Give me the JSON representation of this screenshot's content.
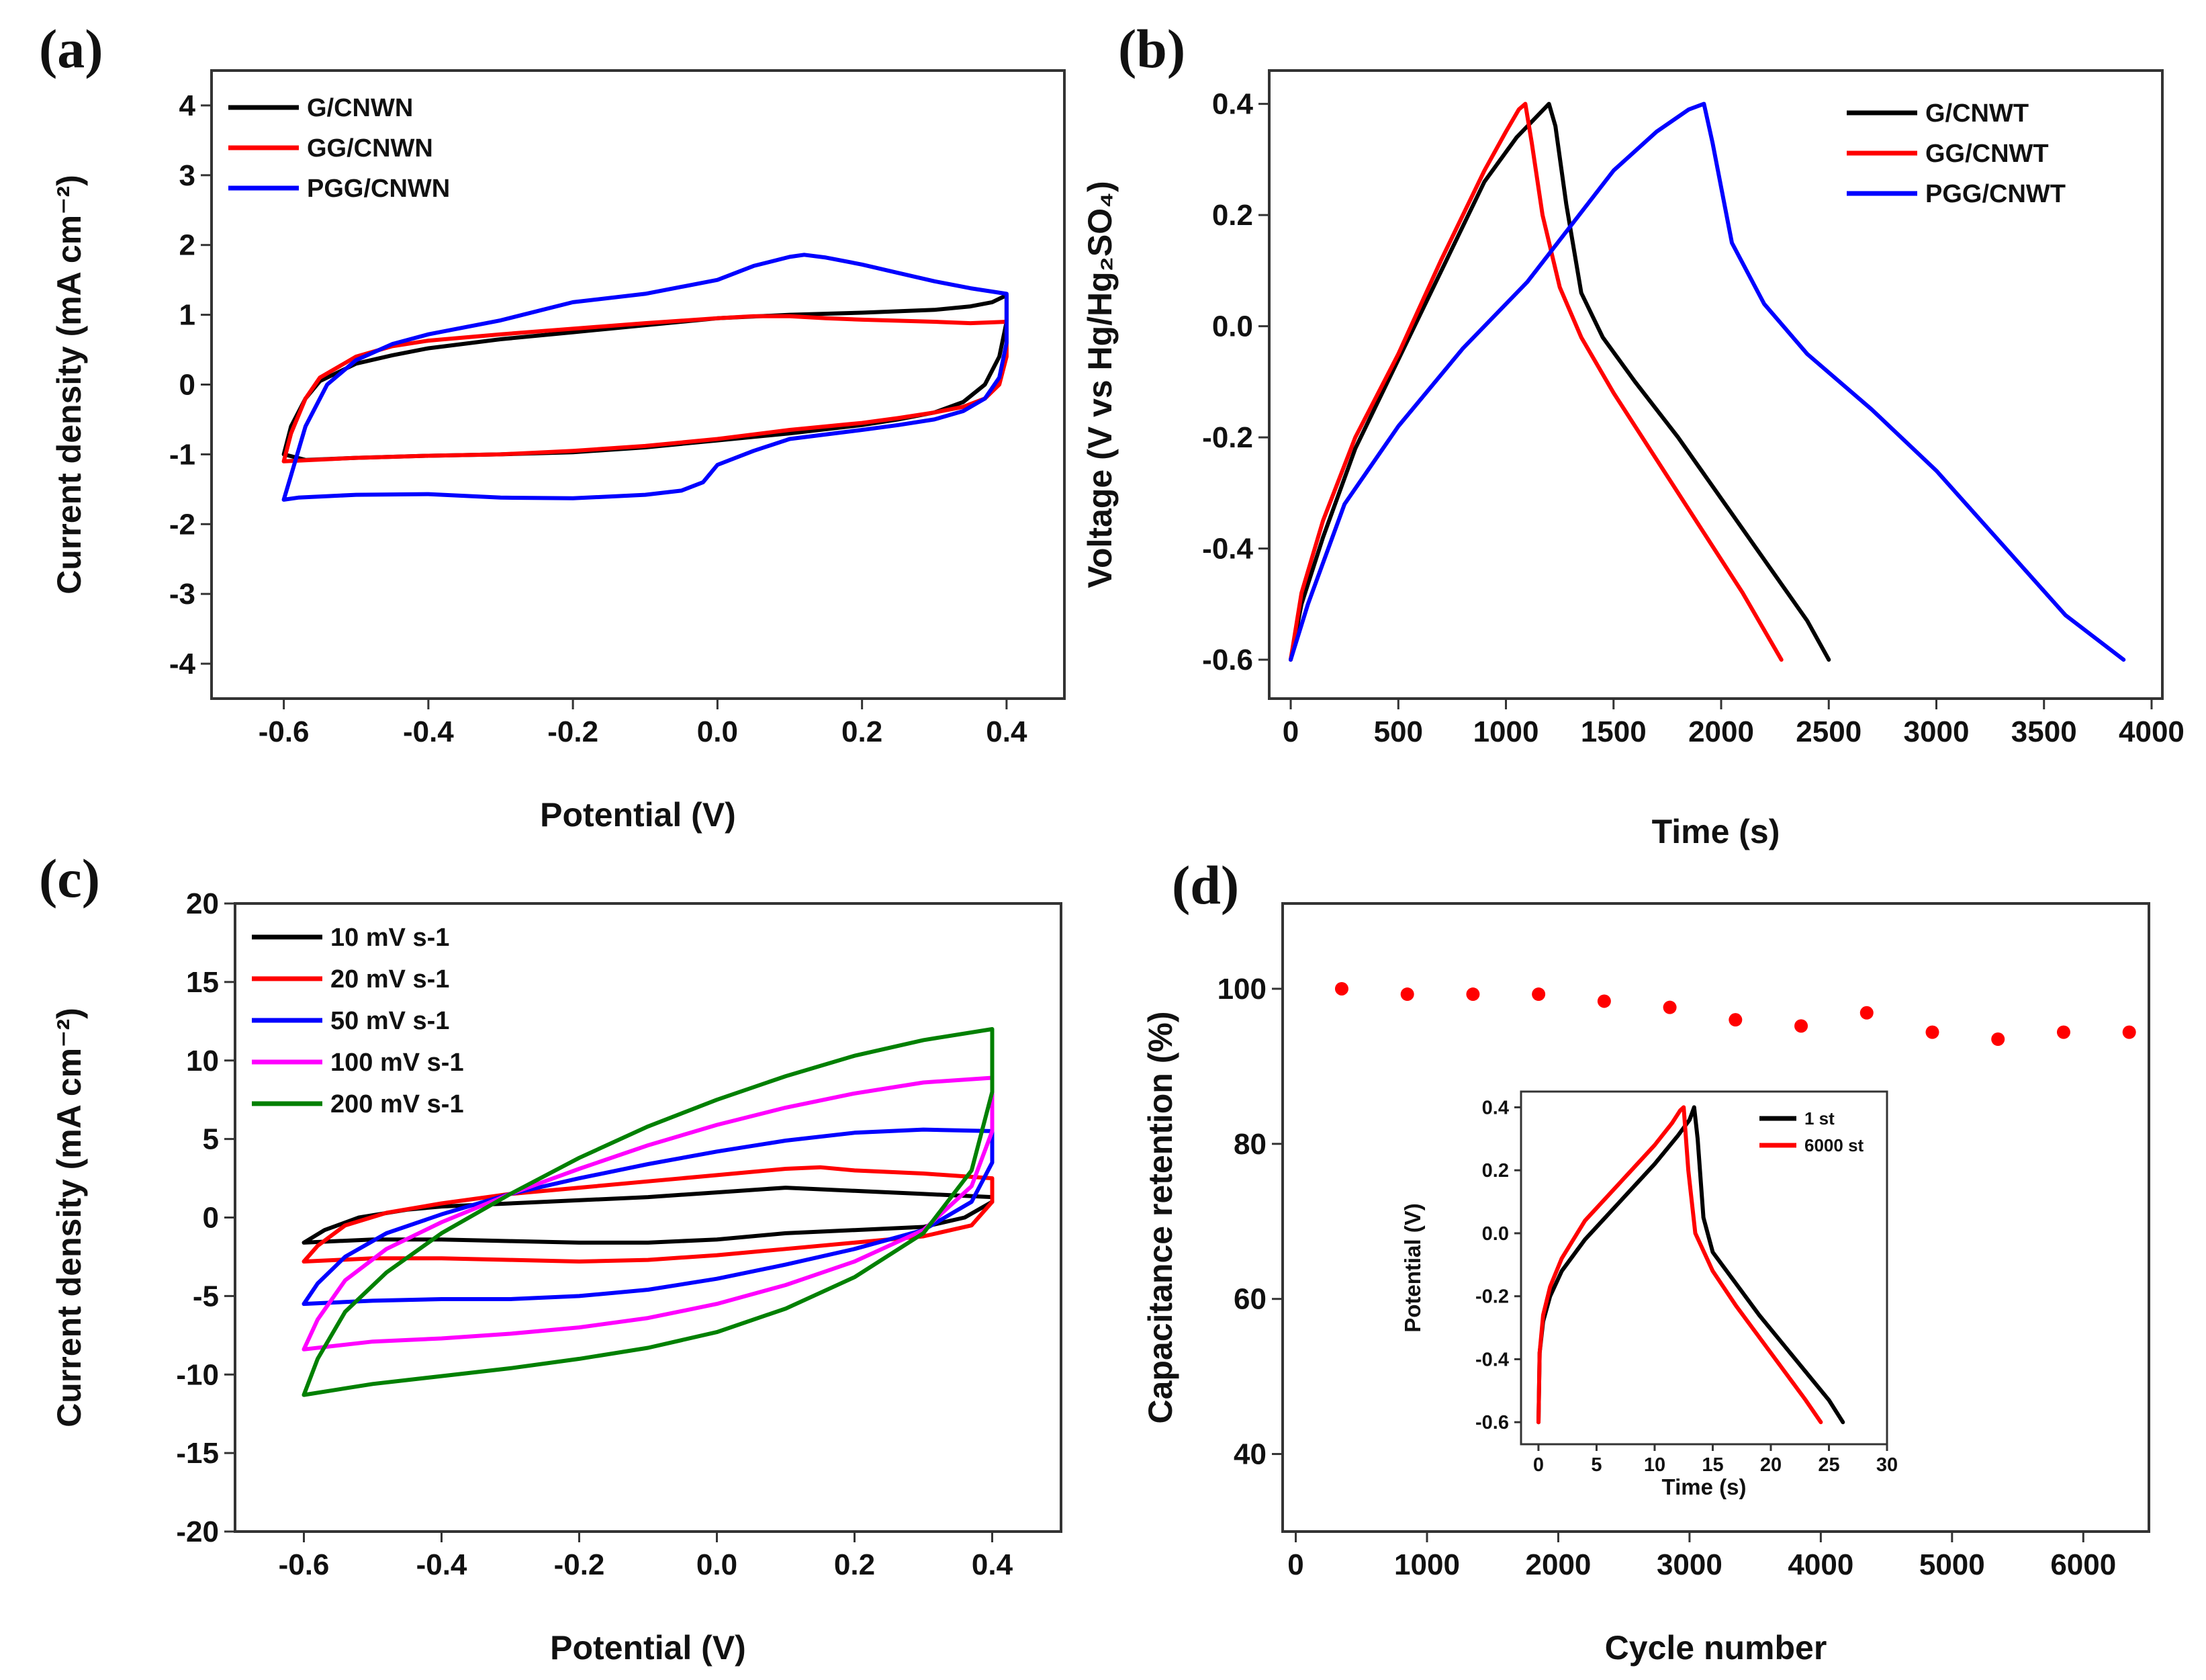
{
  "figure": {
    "panels": [
      "(a)",
      "(b)",
      "(c)",
      "(d)"
    ]
  },
  "chart_data": [
    {
      "id": "a",
      "panel": "(a)",
      "type": "line",
      "subtype": "cyclic voltammetry",
      "xlabel": "Potential (V)",
      "ylabel": "Current density (mA cm⁻²)",
      "xlim": [
        -0.7,
        0.48
      ],
      "ylim": [
        -4.5,
        4.5
      ],
      "xticks": [
        -0.6,
        -0.4,
        -0.2,
        0.0,
        0.2,
        0.4
      ],
      "xtick_labels": [
        "-0.6",
        "-0.4",
        "-0.2",
        "0.0",
        "0.2",
        "0.4"
      ],
      "yticks": [
        -4,
        -3,
        -2,
        -1,
        0,
        1,
        2,
        3,
        4
      ],
      "ytick_labels": [
        "-4",
        "-3",
        "-2",
        "-1",
        "0",
        "1",
        "2",
        "3",
        "4"
      ],
      "legend_position": "top-left",
      "series": [
        {
          "name": "G/CNWN",
          "color": "#000000",
          "x": [
            -0.6,
            -0.59,
            -0.57,
            -0.55,
            -0.5,
            -0.45,
            -0.4,
            -0.3,
            -0.2,
            -0.1,
            0.0,
            0.1,
            0.2,
            0.3,
            0.35,
            0.38,
            0.4,
            0.4,
            0.39,
            0.37,
            0.34,
            0.3,
            0.25,
            0.2,
            0.1,
            0.0,
            -0.1,
            -0.2,
            -0.3,
            -0.4,
            -0.5,
            -0.57,
            -0.6
          ],
          "y": [
            -1.0,
            -0.6,
            -0.2,
            0.05,
            0.3,
            0.42,
            0.52,
            0.65,
            0.75,
            0.85,
            0.95,
            1.0,
            1.03,
            1.07,
            1.12,
            1.18,
            1.28,
            0.9,
            0.4,
            0.0,
            -0.25,
            -0.4,
            -0.5,
            -0.58,
            -0.7,
            -0.8,
            -0.9,
            -0.97,
            -1.0,
            -1.02,
            -1.05,
            -1.08,
            -1.0
          ]
        },
        {
          "name": "GG/CNWN",
          "color": "#ff0000",
          "x": [
            -0.6,
            -0.59,
            -0.57,
            -0.55,
            -0.5,
            -0.45,
            -0.4,
            -0.3,
            -0.2,
            -0.1,
            0.0,
            0.05,
            0.1,
            0.15,
            0.2,
            0.3,
            0.35,
            0.4,
            0.4,
            0.39,
            0.37,
            0.34,
            0.3,
            0.25,
            0.2,
            0.1,
            0.0,
            -0.1,
            -0.2,
            -0.3,
            -0.4,
            -0.5,
            -0.6
          ],
          "y": [
            -1.1,
            -0.7,
            -0.2,
            0.1,
            0.4,
            0.55,
            0.63,
            0.72,
            0.8,
            0.88,
            0.95,
            0.98,
            0.98,
            0.95,
            0.93,
            0.9,
            0.88,
            0.9,
            0.4,
            0.0,
            -0.2,
            -0.32,
            -0.4,
            -0.48,
            -0.55,
            -0.65,
            -0.78,
            -0.88,
            -0.95,
            -1.0,
            -1.02,
            -1.05,
            -1.1
          ]
        },
        {
          "name": "PGG/CNWN",
          "color": "#0000ff",
          "x": [
            -0.6,
            -0.59,
            -0.57,
            -0.54,
            -0.5,
            -0.45,
            -0.4,
            -0.3,
            -0.2,
            -0.1,
            0.0,
            0.05,
            0.1,
            0.12,
            0.15,
            0.2,
            0.25,
            0.3,
            0.35,
            0.4,
            0.4,
            0.39,
            0.37,
            0.34,
            0.3,
            0.25,
            0.2,
            0.1,
            0.05,
            0.0,
            -0.02,
            -0.05,
            -0.1,
            -0.2,
            -0.3,
            -0.4,
            -0.5,
            -0.58,
            -0.6
          ],
          "y": [
            -1.65,
            -1.3,
            -0.6,
            0.0,
            0.35,
            0.58,
            0.72,
            0.92,
            1.18,
            1.3,
            1.5,
            1.7,
            1.83,
            1.86,
            1.82,
            1.72,
            1.6,
            1.48,
            1.38,
            1.3,
            0.6,
            0.1,
            -0.2,
            -0.38,
            -0.5,
            -0.58,
            -0.65,
            -0.78,
            -0.95,
            -1.15,
            -1.4,
            -1.52,
            -1.58,
            -1.63,
            -1.62,
            -1.57,
            -1.58,
            -1.62,
            -1.65
          ]
        }
      ]
    },
    {
      "id": "b",
      "panel": "(b)",
      "type": "line",
      "subtype": "galvanostatic charge-discharge",
      "xlabel": "Time (s)",
      "ylabel": "Voltage (V vs Hg/Hg₂SO₄)",
      "xlim": [
        -100,
        4050
      ],
      "ylim": [
        -0.67,
        0.46
      ],
      "xticks": [
        0,
        500,
        1000,
        1500,
        2000,
        2500,
        3000,
        3500,
        4000
      ],
      "xtick_labels": [
        "0",
        "500",
        "1000",
        "1500",
        "2000",
        "2500",
        "3000",
        "3500",
        "4000"
      ],
      "yticks": [
        -0.6,
        -0.4,
        -0.2,
        0.0,
        0.2,
        0.4
      ],
      "ytick_labels": [
        "-0.6",
        "-0.4",
        "-0.2",
        "0.0",
        "0.2",
        "0.4"
      ],
      "legend_position": "top-right",
      "series": [
        {
          "name": "G/CNWT",
          "color": "#000000",
          "x": [
            0,
            50,
            150,
            300,
            500,
            700,
            900,
            1050,
            1150,
            1200,
            1230,
            1280,
            1350,
            1450,
            1600,
            1800,
            2000,
            2200,
            2400,
            2500
          ],
          "y": [
            -0.6,
            -0.5,
            -0.38,
            -0.22,
            -0.06,
            0.1,
            0.26,
            0.34,
            0.38,
            0.4,
            0.36,
            0.22,
            0.06,
            -0.02,
            -0.1,
            -0.2,
            -0.31,
            -0.42,
            -0.53,
            -0.6
          ]
        },
        {
          "name": "GG/CNWT",
          "color": "#ff0000",
          "x": [
            0,
            50,
            150,
            300,
            500,
            700,
            900,
            1000,
            1060,
            1090,
            1120,
            1170,
            1250,
            1350,
            1500,
            1700,
            1900,
            2100,
            2280
          ],
          "y": [
            -0.6,
            -0.48,
            -0.35,
            -0.2,
            -0.05,
            0.12,
            0.28,
            0.35,
            0.39,
            0.4,
            0.33,
            0.2,
            0.07,
            -0.02,
            -0.12,
            -0.24,
            -0.36,
            -0.48,
            -0.6
          ]
        },
        {
          "name": "PGG/CNWT",
          "color": "#0000ff",
          "x": [
            0,
            80,
            250,
            500,
            800,
            1100,
            1300,
            1500,
            1700,
            1850,
            1920,
            1960,
            2050,
            2200,
            2400,
            2700,
            3000,
            3300,
            3600,
            3870
          ],
          "y": [
            -0.6,
            -0.5,
            -0.32,
            -0.18,
            -0.04,
            0.08,
            0.18,
            0.28,
            0.35,
            0.39,
            0.4,
            0.33,
            0.15,
            0.04,
            -0.05,
            -0.15,
            -0.26,
            -0.39,
            -0.52,
            -0.6
          ]
        }
      ]
    },
    {
      "id": "c",
      "panel": "(c)",
      "type": "line",
      "subtype": "cyclic voltammetry at different scan rates",
      "xlabel": "Potential (V)",
      "ylabel": "Current density (mA cm⁻²)",
      "xlim": [
        -0.7,
        0.5
      ],
      "ylim": [
        -20,
        20
      ],
      "xticks": [
        -0.6,
        -0.4,
        -0.2,
        0.0,
        0.2,
        0.4
      ],
      "xtick_labels": [
        "-0.6",
        "-0.4",
        "-0.2",
        "0.0",
        "0.2",
        "0.4"
      ],
      "yticks": [
        -20,
        -15,
        -10,
        -5,
        0,
        5,
        10,
        15,
        20
      ],
      "ytick_labels": [
        "-20",
        "-15",
        "-10",
        "-5",
        "0",
        "5",
        "10",
        "15",
        "20"
      ],
      "legend_position": "top-left",
      "series": [
        {
          "name": "10 mV s-1",
          "color": "#000000",
          "x": [
            -0.6,
            -0.57,
            -0.52,
            -0.45,
            -0.4,
            -0.3,
            -0.2,
            -0.1,
            0.0,
            0.1,
            0.2,
            0.3,
            0.4,
            0.4,
            0.36,
            0.3,
            0.2,
            0.1,
            0.0,
            -0.1,
            -0.2,
            -0.3,
            -0.4,
            -0.5,
            -0.6
          ],
          "y": [
            -1.6,
            -0.8,
            0.0,
            0.5,
            0.7,
            0.9,
            1.1,
            1.3,
            1.6,
            1.9,
            1.7,
            1.5,
            1.3,
            1.0,
            0.0,
            -0.6,
            -0.8,
            -1.0,
            -1.4,
            -1.6,
            -1.6,
            -1.5,
            -1.4,
            -1.4,
            -1.6
          ]
        },
        {
          "name": "20 mV s-1",
          "color": "#ff0000",
          "x": [
            -0.6,
            -0.58,
            -0.54,
            -0.48,
            -0.4,
            -0.3,
            -0.2,
            -0.1,
            0.0,
            0.1,
            0.15,
            0.2,
            0.3,
            0.4,
            0.4,
            0.37,
            0.3,
            0.2,
            0.1,
            0.0,
            -0.1,
            -0.2,
            -0.3,
            -0.4,
            -0.5,
            -0.6
          ],
          "y": [
            -2.8,
            -1.8,
            -0.5,
            0.3,
            0.9,
            1.5,
            1.9,
            2.3,
            2.7,
            3.1,
            3.2,
            3.0,
            2.8,
            2.5,
            1.0,
            -0.5,
            -1.2,
            -1.6,
            -2.0,
            -2.4,
            -2.7,
            -2.8,
            -2.7,
            -2.6,
            -2.6,
            -2.8
          ]
        },
        {
          "name": "50 mV s-1",
          "color": "#0000ff",
          "x": [
            -0.6,
            -0.58,
            -0.54,
            -0.48,
            -0.4,
            -0.3,
            -0.2,
            -0.1,
            0.0,
            0.1,
            0.2,
            0.3,
            0.4,
            0.4,
            0.37,
            0.3,
            0.2,
            0.1,
            0.0,
            -0.1,
            -0.2,
            -0.3,
            -0.4,
            -0.5,
            -0.6
          ],
          "y": [
            -5.5,
            -4.2,
            -2.5,
            -1.0,
            0.2,
            1.5,
            2.5,
            3.4,
            4.2,
            4.9,
            5.4,
            5.6,
            5.5,
            3.5,
            1.0,
            -0.8,
            -2.0,
            -3.0,
            -3.9,
            -4.6,
            -5.0,
            -5.2,
            -5.2,
            -5.3,
            -5.5
          ]
        },
        {
          "name": "100 mV s-1",
          "color": "#ff00ff",
          "x": [
            -0.6,
            -0.58,
            -0.54,
            -0.48,
            -0.4,
            -0.3,
            -0.2,
            -0.1,
            0.0,
            0.1,
            0.2,
            0.3,
            0.4,
            0.4,
            0.37,
            0.3,
            0.2,
            0.1,
            0.0,
            -0.1,
            -0.2,
            -0.3,
            -0.4,
            -0.5,
            -0.6
          ],
          "y": [
            -8.4,
            -6.5,
            -4.0,
            -2.0,
            -0.3,
            1.5,
            3.1,
            4.6,
            5.9,
            7.0,
            7.9,
            8.6,
            8.9,
            5.5,
            2.0,
            -0.8,
            -2.8,
            -4.3,
            -5.5,
            -6.4,
            -7.0,
            -7.4,
            -7.7,
            -7.9,
            -8.4
          ]
        },
        {
          "name": "200 mV s-1",
          "color": "#008000",
          "x": [
            -0.6,
            -0.58,
            -0.54,
            -0.48,
            -0.4,
            -0.3,
            -0.2,
            -0.1,
            0.0,
            0.1,
            0.2,
            0.3,
            0.4,
            0.4,
            0.37,
            0.3,
            0.2,
            0.1,
            0.0,
            -0.1,
            -0.2,
            -0.3,
            -0.4,
            -0.5,
            -0.6
          ],
          "y": [
            -11.3,
            -9.0,
            -6.0,
            -3.5,
            -1.0,
            1.5,
            3.8,
            5.8,
            7.5,
            9.0,
            10.3,
            11.3,
            12.0,
            8.0,
            3.0,
            -1.0,
            -3.8,
            -5.8,
            -7.3,
            -8.3,
            -9.0,
            -9.6,
            -10.1,
            -10.6,
            -11.3
          ]
        }
      ]
    },
    {
      "id": "d",
      "panel": "(d)",
      "type": "scatter",
      "xlabel": "Cycle number",
      "ylabel": "Capacitance retention (%)",
      "xlim": [
        -100,
        6500
      ],
      "ylim": [
        30,
        111
      ],
      "xticks": [
        0,
        1000,
        2000,
        3000,
        4000,
        5000,
        6000
      ],
      "xtick_labels": [
        "0",
        "1000",
        "2000",
        "3000",
        "4000",
        "5000",
        "6000"
      ],
      "yticks": [
        40,
        60,
        80,
        100
      ],
      "ytick_labels": [
        "40",
        "60",
        "80",
        "100"
      ],
      "series": [
        {
          "name": "retention",
          "color": "#ff0000",
          "x": [
            350,
            850,
            1350,
            1850,
            2350,
            2850,
            3350,
            3850,
            4350,
            4850,
            5350,
            5850,
            6350
          ],
          "y": [
            100,
            99.3,
            99.3,
            99.3,
            98.4,
            97.6,
            96.0,
            95.2,
            96.9,
            94.4,
            93.5,
            94.4,
            94.4
          ]
        }
      ],
      "inset": {
        "type": "line",
        "xlabel": "Time (s)",
        "ylabel": "Potential (V)",
        "xlim": [
          -1.5,
          30
        ],
        "ylim": [
          -0.67,
          0.45
        ],
        "xticks": [
          0,
          5,
          10,
          15,
          20,
          25,
          30
        ],
        "xtick_labels": [
          "0",
          "5",
          "10",
          "15",
          "20",
          "25",
          "30"
        ],
        "yticks": [
          -0.6,
          -0.4,
          -0.2,
          0.0,
          0.2,
          0.4
        ],
        "ytick_labels": [
          "-0.6",
          "-0.4",
          "-0.2",
          "0.0",
          "0.2",
          "0.4"
        ],
        "legend_position": "top-right",
        "series": [
          {
            "name": "1 st",
            "color": "#000000",
            "x": [
              0,
              0.1,
              0.4,
              1,
              2,
              4,
              6,
              8,
              10,
              12,
              13.0,
              13.4,
              13.7,
              14.2,
              15,
              17,
              19,
              21,
              23,
              25,
              26.2
            ],
            "y": [
              -0.6,
              -0.38,
              -0.28,
              -0.2,
              -0.12,
              -0.02,
              0.06,
              0.14,
              0.22,
              0.31,
              0.36,
              0.4,
              0.3,
              0.05,
              -0.06,
              -0.16,
              -0.26,
              -0.35,
              -0.44,
              -0.53,
              -0.6
            ]
          },
          {
            "name": "6000 st",
            "color": "#ff0000",
            "x": [
              0,
              0.1,
              0.4,
              1,
              2,
              4,
              6,
              8,
              10,
              11.5,
              12.2,
              12.5,
              12.9,
              13.5,
              15,
              17,
              19,
              21,
              23,
              24.3
            ],
            "y": [
              -0.6,
              -0.38,
              -0.26,
              -0.17,
              -0.08,
              0.04,
              0.12,
              0.2,
              0.28,
              0.35,
              0.39,
              0.4,
              0.2,
              0.0,
              -0.12,
              -0.23,
              -0.33,
              -0.43,
              -0.53,
              -0.6
            ]
          }
        ]
      }
    }
  ]
}
